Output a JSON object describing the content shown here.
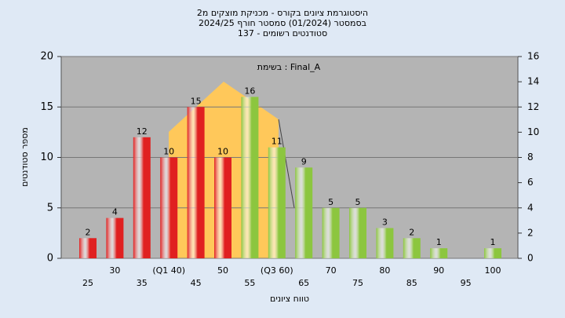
{
  "chart_data": {
    "type": "bar",
    "title": "היסטוגרמת ציונים בקורס - מכניקת מוצקים מ2",
    "subtitle": [
      "בסמסטר  (01/2024)  סמסטר חורף 2024/25",
      "סטודנטים רשומים - 137"
    ],
    "annotation": "בשימת : Final_A",
    "xlabel": "טווח ציונים",
    "ylabel": "מספר סטודנטים",
    "categories": [
      "25",
      "30",
      "35",
      "(Q1 40)",
      "45",
      "50",
      "55",
      "(Q3 60)",
      "65",
      "70",
      "75",
      "80",
      "85",
      "90",
      "95",
      "100"
    ],
    "values": [
      2,
      4,
      12,
      10,
      15,
      10,
      16,
      11,
      9,
      5,
      5,
      3,
      2,
      1,
      null,
      1
    ],
    "colors": [
      "#e02020",
      "#e02020",
      "#e02020",
      "#e02020",
      "#e02020",
      "#e02020",
      "#8cc63f",
      "#8cc63f",
      "#8cc63f",
      "#8cc63f",
      "#8cc63f",
      "#8cc63f",
      "#8cc63f",
      "#8cc63f",
      "#8cc63f",
      "#8cc63f"
    ],
    "ylim": [
      0,
      20
    ],
    "yticks": [
      0,
      5,
      10,
      15,
      20
    ],
    "y2lim": [
      0,
      16
    ],
    "y2ticks": [
      0,
      2,
      4,
      6,
      8,
      10,
      12,
      14,
      16
    ],
    "grid": true
  }
}
